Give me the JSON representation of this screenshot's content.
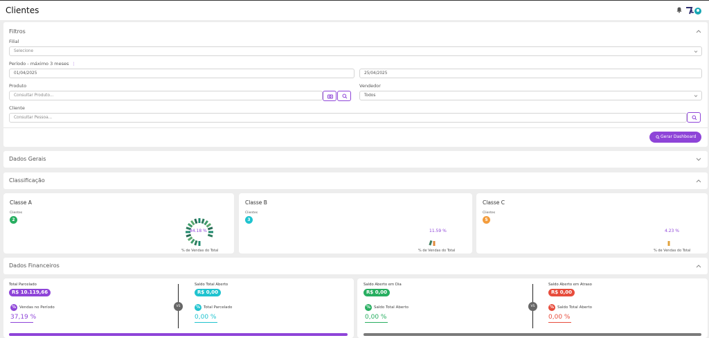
{
  "header": {
    "title": "Clientes"
  },
  "filters": {
    "title": "Filtros",
    "filial_label": "Filial",
    "filial_placeholder": "Selecione",
    "period_label": "Período - máximo 3 meses",
    "date_start": "01/04/2025",
    "date_end": "25/04/2025",
    "produto_label": "Produto",
    "produto_placeholder": "Consultar Produto...",
    "vendedor_label": "Vendedor",
    "vendedor_value": "Todos",
    "cliente_label": "Cliente",
    "cliente_placeholder": "Consultar Pessoa...",
    "generate_button": "Gerar Dashboard"
  },
  "sections": {
    "dados_gerais": "Dados Gerais",
    "classificacao": "Classificação",
    "dados_financeiros": "Dados Financeiros"
  },
  "classes": [
    {
      "title": "Classe A",
      "clients_label": "Clientes",
      "count": "2",
      "percent": "84.18 %",
      "percent_value": 84.18,
      "footer": "% de Vendas do Total",
      "color": "#27ae60"
    },
    {
      "title": "Classe B",
      "clients_label": "Clientes",
      "count": "3",
      "percent": "11.59 %",
      "percent_value": 11.59,
      "footer": "% de Vendas do Total",
      "color": "#1fc3cf"
    },
    {
      "title": "Classe C",
      "clients_label": "Clientes",
      "count": "5",
      "percent": "4.23 %",
      "percent_value": 4.23,
      "footer": "% de Vendas do Total",
      "color": "#f39c3c"
    }
  ],
  "financial": {
    "left": {
      "a_label": "Total Parcelado",
      "a_value": "R$ 10.119,66",
      "a_color": "#8e44d8",
      "b_label": "Saldo Total Aberto",
      "b_value": "R$ 0,00",
      "b_color": "#1fc3cf",
      "vs": "VS",
      "a_sub_label": "Vendas no Período",
      "a_sub_value": "37,19 %",
      "b_sub_label": "Total Parcelado",
      "b_sub_value": "0,00 %",
      "badge_symbol": "%"
    },
    "right": {
      "a_label": "Saldo Aberto em Dia",
      "a_value": "R$ 0,00",
      "a_color": "#27ae60",
      "b_label": "Saldo Aberto em Atraso",
      "b_value": "R$ 0,00",
      "b_color": "#e74c3c",
      "vs": "VS",
      "a_sub_label": "Saldo Total Aberto",
      "a_sub_value": "0,00 %",
      "b_sub_label": "Saldo Total Aberto",
      "b_sub_value": "0,00 %",
      "badge_symbol": "%"
    }
  }
}
